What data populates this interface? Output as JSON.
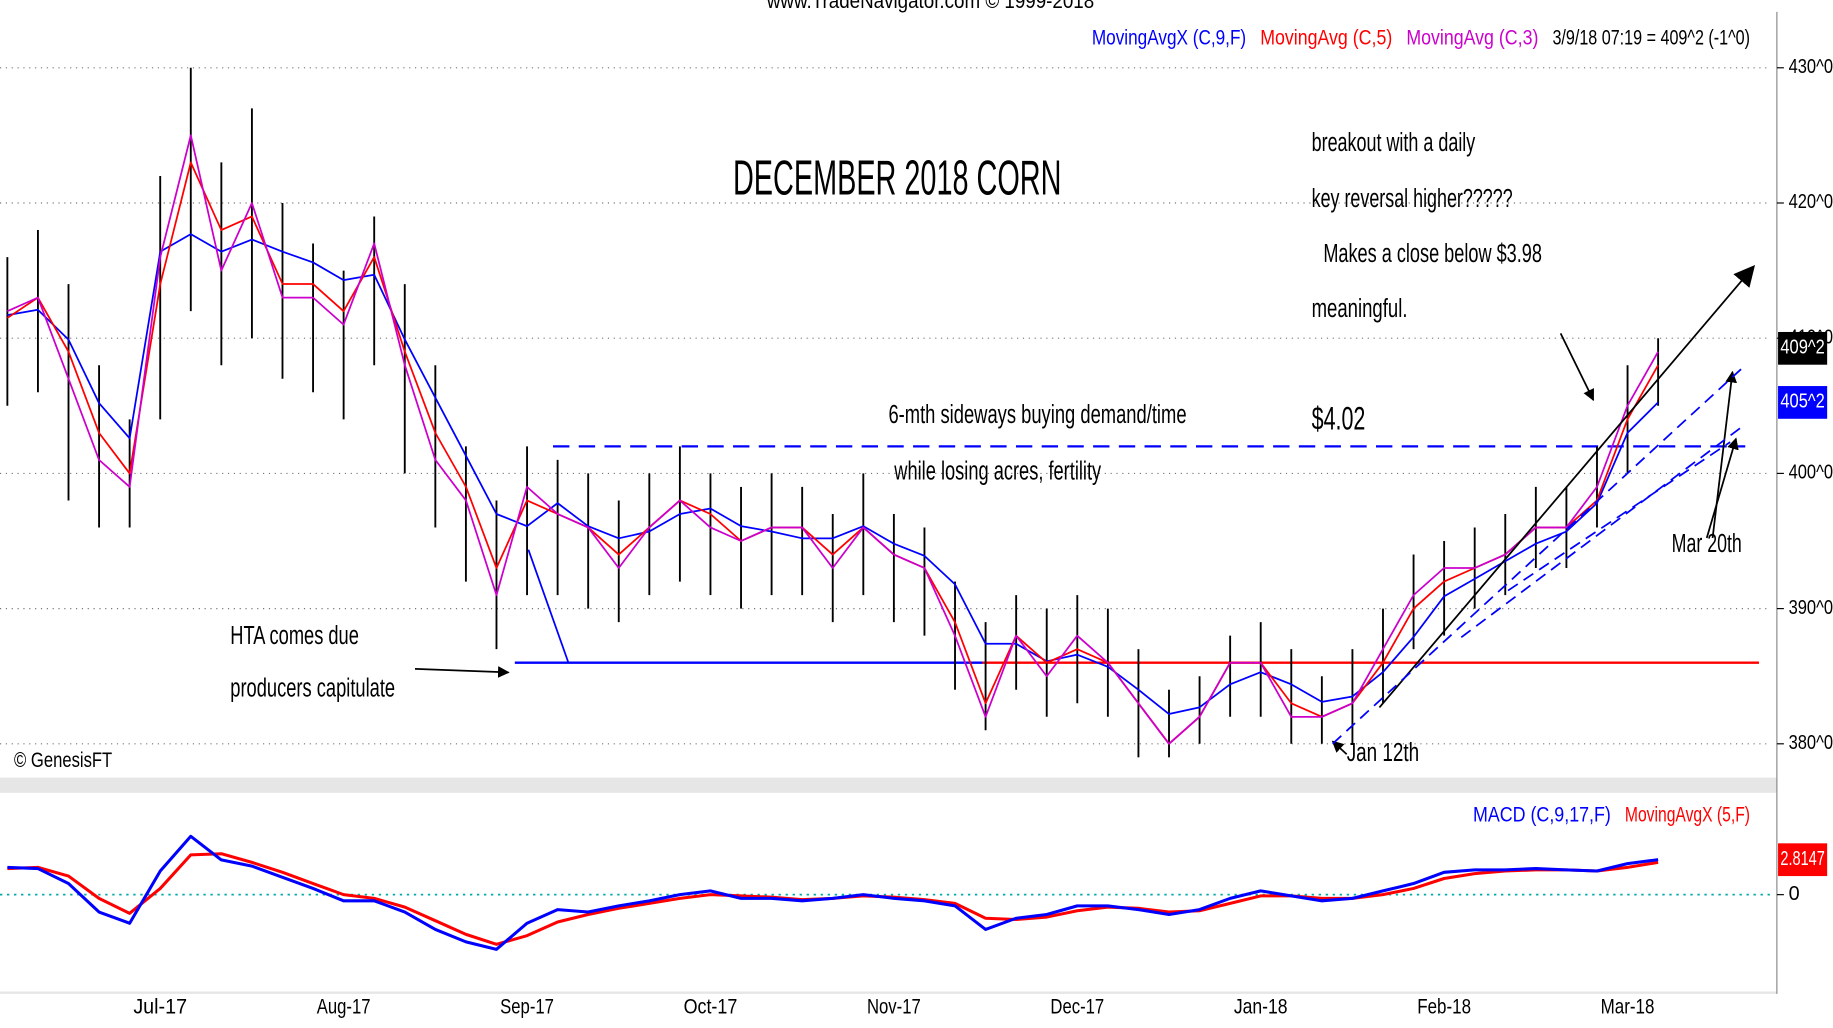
{
  "chart_data": [
    {
      "type": "line",
      "header": "www.TradeNavigator.com © 1999-2018",
      "title": "DECEMBER 2018 CORN",
      "readout": "3/9/18 07:19 = 409^2 (-1^0)",
      "credit": "© GenesisFT",
      "categories": [
        null,
        null,
        null,
        null,
        null,
        "Jul-17",
        null,
        null,
        null,
        null,
        null,
        "Aug-17",
        null,
        null,
        null,
        null,
        null,
        "Sep-17",
        null,
        null,
        null,
        null,
        null,
        "Oct-17",
        null,
        null,
        null,
        null,
        null,
        "Nov-17",
        null,
        null,
        null,
        null,
        null,
        "Dec-17",
        null,
        null,
        null,
        null,
        null,
        "Jan-18",
        null,
        null,
        null,
        null,
        null,
        "Feb-18",
        null,
        null,
        null,
        null,
        null,
        "Mar-18",
        null
      ],
      "series": [
        {
          "name": "MovingAvgX (C,9,F)",
          "color": "#0000ff",
          "values": [
            411.7,
            412.1,
            409.9,
            405.2,
            402.6,
            416.4,
            417.7,
            416.4,
            417.3,
            416.4,
            415.6,
            414.3,
            414.7,
            409.9,
            405.6,
            401.3,
            397.0,
            396.1,
            397.8,
            396.1,
            395.2,
            395.7,
            397.0,
            397.4,
            396.1,
            395.7,
            395.2,
            395.2,
            396.1,
            394.8,
            393.9,
            391.8,
            387.4,
            387.4,
            386.1,
            386.6,
            385.7,
            384.0,
            382.2,
            382.7,
            384.4,
            385.3,
            384.4,
            383.1,
            383.5,
            385.3,
            387.9,
            390.9,
            392.2,
            393.5,
            394.8,
            395.7,
            397.8,
            403.0,
            405.25
          ]
        },
        {
          "name": "MovingAvg (C,5)",
          "color": "#ff0000",
          "values": [
            411.5,
            413,
            409,
            403,
            400,
            414,
            423,
            418,
            419,
            414,
            414,
            412,
            416,
            409,
            403,
            399,
            393,
            398,
            397,
            396,
            394,
            396,
            398,
            397,
            395,
            396,
            396,
            394,
            396,
            394,
            393,
            389,
            383,
            388,
            386,
            387,
            386,
            383,
            380,
            382,
            386,
            386,
            383,
            382,
            383,
            386,
            390,
            392,
            393,
            394,
            396,
            396,
            398,
            404,
            408
          ]
        },
        {
          "name": "MovingAvg (C,3)",
          "color": "#cc00cc",
          "values": [
            412,
            413,
            407,
            401,
            399,
            416,
            425,
            415,
            420,
            413,
            413,
            411,
            417,
            408,
            401,
            398,
            391,
            399,
            397,
            396,
            393,
            396,
            398,
            396,
            395,
            396,
            396,
            393,
            396,
            394,
            393,
            388,
            382,
            388,
            385,
            388,
            386,
            383,
            380,
            382,
            386,
            386,
            382,
            382,
            383,
            387,
            391,
            393,
            393,
            394,
            396,
            396,
            399,
            405,
            409
          ]
        }
      ],
      "price_range": [
        [
          405,
          416
        ],
        [
          406,
          418
        ],
        [
          398,
          414
        ],
        [
          396,
          408
        ],
        [
          396,
          404
        ],
        [
          404,
          422
        ],
        [
          412,
          430
        ],
        [
          408,
          423
        ],
        [
          410,
          427
        ],
        [
          407,
          420
        ],
        [
          406,
          417
        ],
        [
          404,
          415
        ],
        [
          408,
          419
        ],
        [
          400,
          414
        ],
        [
          396,
          408
        ],
        [
          392,
          402
        ],
        [
          387,
          398
        ],
        [
          391,
          402
        ],
        [
          391,
          401
        ],
        [
          390,
          400
        ],
        [
          389,
          398
        ],
        [
          391,
          400
        ],
        [
          392,
          402
        ],
        [
          391,
          400
        ],
        [
          390,
          399
        ],
        [
          391,
          400
        ],
        [
          391,
          399
        ],
        [
          389,
          397
        ],
        [
          391,
          400
        ],
        [
          389,
          397
        ],
        [
          388,
          396
        ],
        [
          384,
          392
        ],
        [
          381,
          389
        ],
        [
          384,
          391
        ],
        [
          382,
          390
        ],
        [
          383,
          391
        ],
        [
          382,
          390
        ],
        [
          379,
          387
        ],
        [
          379,
          384
        ],
        [
          380,
          385
        ],
        [
          382,
          388
        ],
        [
          382,
          389
        ],
        [
          380,
          387
        ],
        [
          380,
          385
        ],
        [
          380,
          387
        ],
        [
          383,
          390
        ],
        [
          387,
          394
        ],
        [
          388,
          395
        ],
        [
          390,
          396
        ],
        [
          391,
          397
        ],
        [
          393,
          399
        ],
        [
          393,
          399
        ],
        [
          396,
          402
        ],
        [
          400,
          408
        ],
        [
          405,
          410
        ]
      ],
      "bar_color": "#000000",
      "ylim": [
        377.5,
        433.7
      ],
      "yticks": [
        {
          "value": 380,
          "label": "380^0"
        },
        {
          "value": 390,
          "label": "390^0"
        },
        {
          "value": 400,
          "label": "400^0"
        },
        {
          "value": 410,
          "label": "410^0"
        },
        {
          "value": 420,
          "label": "420^0"
        },
        {
          "value": 430,
          "label": "430^0"
        }
      ],
      "marker_ticks": [
        {
          "value": 409.25,
          "label": "409^2",
          "color": "#000000"
        },
        {
          "value": 405.25,
          "label": "405^2",
          "color": "#0000ff"
        }
      ],
      "grid": true,
      "reference_lines": [
        {
          "value": 402,
          "color": "#0000ff",
          "dashed": true,
          "start": 17.85,
          "end": 56.85
        },
        {
          "value": 386,
          "color": "#0000ff",
          "dashed": false,
          "start": 16.6,
          "end": 31.9
        },
        {
          "value": 386,
          "color": "#ff0000",
          "dashed": false,
          "start": 31.9,
          "end": 57.3
        }
      ],
      "annotations": [
        "breakout with a daily",
        "key reversal higher?????",
        "Makes a close below $3.98",
        "meaningful.",
        "6-mth sideways buying demand/time",
        "while losing acres, fertility",
        "$4.02",
        "HTA comes due",
        "producers capitulate",
        "Mar 20th",
        "Jan 12th"
      ]
    },
    {
      "type": "line",
      "series": [
        {
          "name": "MovingAvgX (5,F)",
          "color": "#ff0000",
          "values": [
            2.1,
            2.2,
            1.5,
            -0.3,
            -1.5,
            0.5,
            3.2,
            3.3,
            2.6,
            1.8,
            0.9,
            0,
            -0.3,
            -1.0,
            -2.1,
            -3.2,
            -4.0,
            -3.3,
            -2.2,
            -1.6,
            -1.1,
            -0.7,
            -0.3,
            0,
            -0.1,
            -0.2,
            -0.4,
            -0.3,
            -0.1,
            -0.2,
            -0.4,
            -0.7,
            -1.9,
            -2.0,
            -1.8,
            -1.3,
            -1.0,
            -1.1,
            -1.4,
            -1.3,
            -0.7,
            -0.1,
            -0.1,
            -0.3,
            -0.3,
            0,
            0.5,
            1.3,
            1.7,
            1.9,
            2.0,
            2.0,
            1.9,
            2.2,
            2.6
          ]
        },
        {
          "name": "MACD (C,9,17,F)",
          "color": "#0000ff",
          "values": [
            2.2,
            2.1,
            0.9,
            -1.4,
            -2.3,
            1.9,
            4.7,
            2.8,
            2.3,
            1.4,
            0.5,
            -0.5,
            -0.5,
            -1.4,
            -2.8,
            -3.8,
            -4.4,
            -2.3,
            -1.2,
            -1.4,
            -0.9,
            -0.5,
            0,
            0.3,
            -0.3,
            -0.3,
            -0.5,
            -0.3,
            0,
            -0.3,
            -0.5,
            -0.9,
            -2.8,
            -1.9,
            -1.6,
            -0.9,
            -0.9,
            -1.2,
            -1.6,
            -1.2,
            -0.3,
            0.3,
            -0.1,
            -0.5,
            -0.3,
            0.3,
            0.9,
            1.8,
            2.0,
            2.0,
            2.1,
            2.0,
            1.9,
            2.5,
            2.8147
          ]
        }
      ],
      "ylim": [
        -7.8,
        8.2
      ],
      "yticks": [
        0
      ],
      "marker_ticks": [
        {
          "value": 2.8147,
          "label": "2.8147",
          "color": "#ff0000"
        }
      ],
      "zero_line_color": "#00aaaa"
    }
  ]
}
